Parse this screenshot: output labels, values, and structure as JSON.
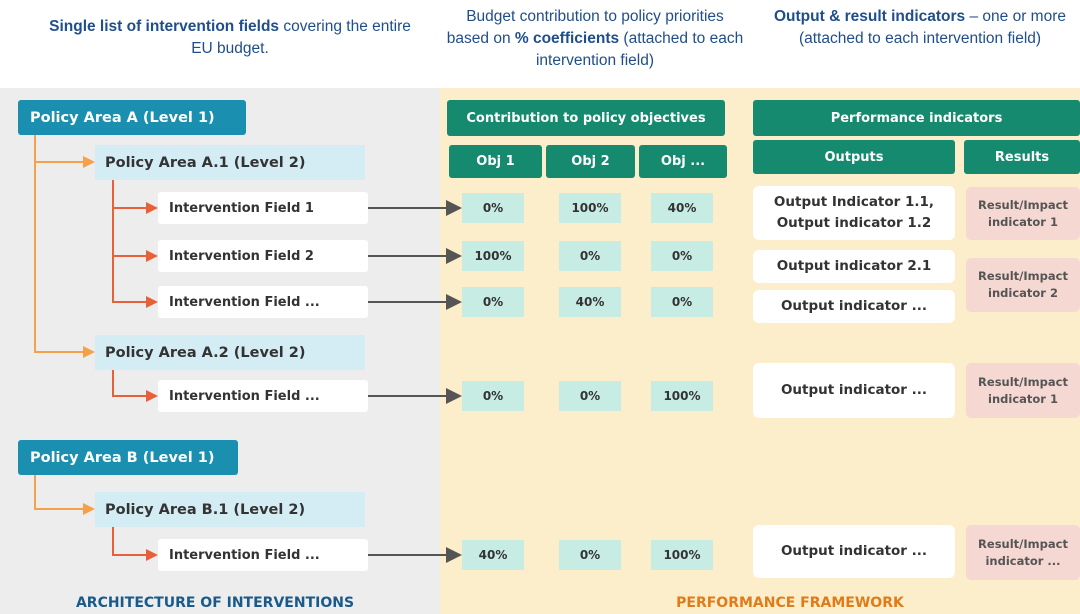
{
  "headers": [
    [
      {
        "strong": "Single list of intervention fields"
      },
      {
        "text": " covering the entire EU budget."
      }
    ],
    [
      {
        "text": "Budget contribution to policy priorities based on "
      },
      {
        "strong": "% coefficients"
      },
      {
        "text": " (attached to each intervention field)"
      }
    ],
    [
      {
        "strong": "Output & result indicators"
      },
      {
        "text": " – one or more (attached to each intervention field)"
      }
    ]
  ],
  "architecture": {
    "title": "ARCHITECTURE OF INTERVENTIONS",
    "policy_areas": [
      {
        "label": "Policy Area A (Level 1)",
        "sub_areas": [
          {
            "label": "Policy Area A.1 (Level 2)",
            "fields": [
              "Intervention Field 1",
              "Intervention Field 2",
              "Intervention Field ..."
            ]
          },
          {
            "label": "Policy Area A.2 (Level 2)",
            "fields": [
              "Intervention Field ..."
            ]
          }
        ]
      },
      {
        "label": "Policy Area B (Level 1)",
        "sub_areas": [
          {
            "label": "Policy Area B.1 (Level 2)",
            "fields": [
              "Intervention Field ..."
            ]
          }
        ]
      }
    ]
  },
  "performance": {
    "title": "PERFORMANCE FRAMEWORK",
    "contribution_header": "Contribution to policy objectives",
    "objectives": [
      "Obj 1",
      "Obj 2",
      "Obj ..."
    ],
    "indicators_header": "Performance indicators",
    "outputs_header": "Outputs",
    "results_header": "Results",
    "rows": [
      {
        "coefficients": [
          "0%",
          "100%",
          "40%"
        ],
        "output": "Output Indicator 1.1, Output indicator 1.2"
      },
      {
        "coefficients": [
          "100%",
          "0%",
          "0%"
        ],
        "output": "Output indicator 2.1"
      },
      {
        "coefficients": [
          "0%",
          "40%",
          "0%"
        ],
        "output": "Output indicator ..."
      },
      {
        "coefficients": [
          "0%",
          "0%",
          "100%"
        ],
        "output": "Output indicator ..."
      },
      {
        "coefficients": [
          "40%",
          "0%",
          "100%"
        ],
        "output": "Output indicator ..."
      }
    ],
    "results": [
      "Result/Impact indicator 1",
      "Result/Impact indicator 2",
      "Result/Impact indicator 1",
      "Result/Impact indicator ..."
    ]
  }
}
